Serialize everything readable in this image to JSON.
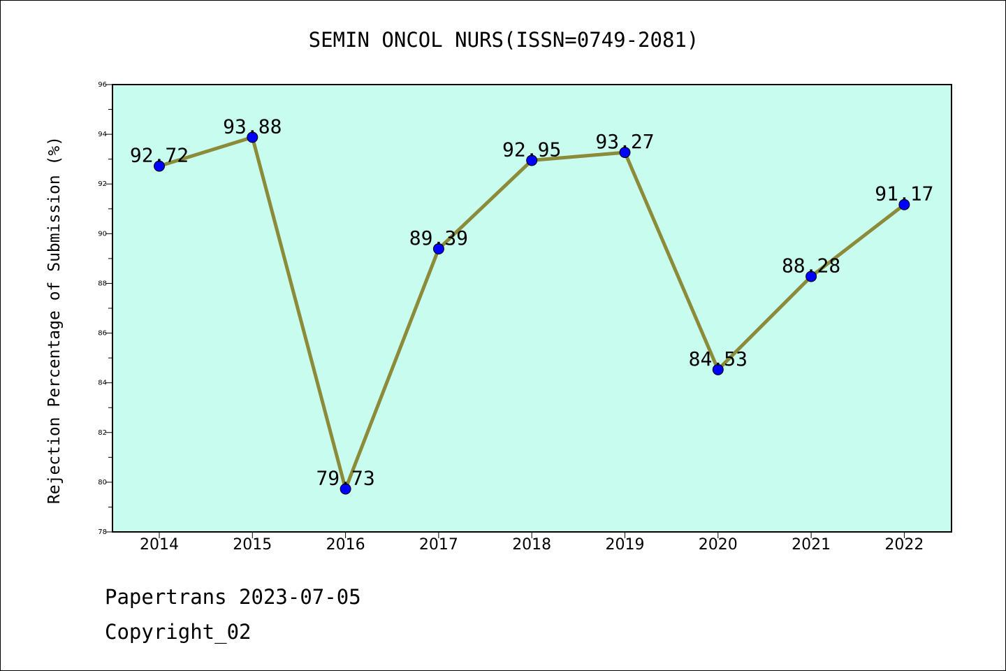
{
  "chart_data": {
    "type": "line",
    "title": "SEMIN ONCOL NURS(ISSN=0749-2081)",
    "xlabel": "",
    "ylabel": "Rejection Percentage of Submission (%)",
    "categories": [
      "2014",
      "2015",
      "2016",
      "2017",
      "2018",
      "2019",
      "2020",
      "2021",
      "2022"
    ],
    "values": [
      92.72,
      93.88,
      79.73,
      89.39,
      92.95,
      93.27,
      84.53,
      88.28,
      91.17
    ],
    "data_labels": [
      "92.72",
      "93.88",
      "79.73",
      "89.39",
      "92.95",
      "93.27",
      "84.53",
      "88.28",
      "91.17"
    ],
    "ylim": [
      78,
      96
    ],
    "yticks": [
      "78",
      "80",
      "82",
      "84",
      "86",
      "88",
      "90",
      "92",
      "94",
      "96"
    ],
    "grid": false,
    "legend": "none",
    "colors": {
      "plot_background": "#c8fcee",
      "line": "#8b8b3a",
      "marker": "#0000ff"
    }
  },
  "footer": {
    "line1": "Papertrans 2023-07-05",
    "line2": "Copyright_02"
  }
}
